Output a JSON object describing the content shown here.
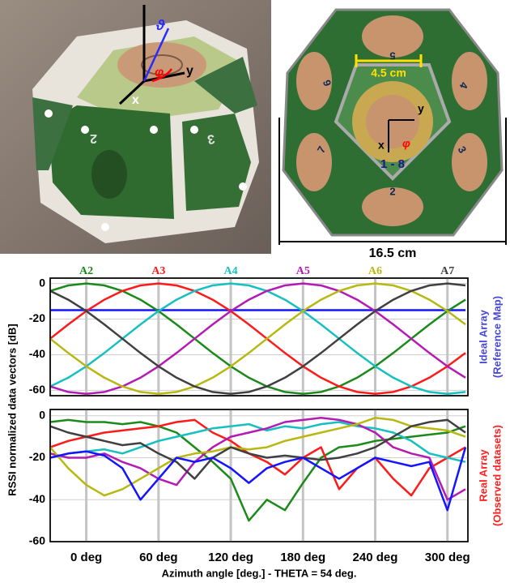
{
  "figure": {
    "photo": {
      "theta": "ϑ",
      "phi": "φ",
      "x": "x",
      "y": "y",
      "face_a": "2",
      "face_b": "3"
    },
    "model": {
      "width_label": "4.5 cm",
      "x": "x",
      "y": "y",
      "phi": "φ",
      "center_label": "1 - 8",
      "faces": [
        "5",
        "4",
        "3",
        "2",
        "7",
        "6"
      ],
      "size_label": "16.5 cm"
    }
  },
  "chart_data": [
    {
      "type": "line",
      "ylabel": "RSSI normalized data vectors [dB]",
      "side_label": [
        "Ideal Array",
        "(Reference Map)"
      ],
      "side_label_color": "#4848d8",
      "x": [
        -30,
        -15,
        0,
        15,
        30,
        45,
        60,
        75,
        90,
        105,
        120,
        135,
        150,
        165,
        180,
        195,
        210,
        225,
        240,
        255,
        270,
        285,
        300,
        315
      ],
      "xlim": [
        -30,
        317
      ],
      "xticks": [
        0,
        60,
        120,
        180,
        240,
        300
      ],
      "xtick_labels": false,
      "ylim": [
        -63,
        3
      ],
      "yticks": [
        0,
        -20,
        -40,
        -60
      ],
      "grid": true,
      "series": [
        {
          "color": "#1414ff",
          "values": [
            -15,
            -15,
            -15,
            -15,
            -15,
            -15,
            -15,
            -15,
            -15,
            -15,
            -15,
            -15,
            -15,
            -15,
            -15,
            -15,
            -15,
            -15,
            -15,
            -15,
            -15,
            -15,
            -15,
            -15
          ]
        },
        {
          "name": "A2",
          "color": "#1b8a1b",
          "values": [
            -4.2,
            -1.1,
            0,
            -1.1,
            -4.2,
            -9.1,
            -15.5,
            -23,
            -31,
            -39,
            -46.5,
            -52.9,
            -57.8,
            -60.9,
            -62,
            -60.9,
            -57.8,
            -52.9,
            -46.5,
            -39,
            -31,
            -23,
            -15.5,
            -9.1
          ]
        },
        {
          "name": "A3",
          "color": "#ff1a1a",
          "values": [
            -31,
            -23,
            -15.5,
            -9.1,
            -4.2,
            -1.1,
            0,
            -1.1,
            -4.2,
            -9.1,
            -15.5,
            -23,
            -31,
            -39,
            -46.5,
            -52.9,
            -57.8,
            -60.9,
            -62,
            -60.9,
            -57.8,
            -52.9,
            -46.5,
            -39
          ]
        },
        {
          "name": "A4",
          "color": "#17c0c0",
          "values": [
            -57.8,
            -52.9,
            -46.5,
            -39,
            -31,
            -23,
            -15.5,
            -9.1,
            -4.2,
            -1.1,
            0,
            -1.1,
            -4.2,
            -9.1,
            -15.5,
            -23,
            -31,
            -39,
            -46.5,
            -52.9,
            -57.8,
            -60.9,
            -62,
            -60.9
          ]
        },
        {
          "name": "A5",
          "color": "#b41ab4",
          "values": [
            -57.8,
            -60.9,
            -62,
            -60.9,
            -57.8,
            -52.9,
            -46.5,
            -39,
            -31,
            -23,
            -15.5,
            -9.1,
            -4.2,
            -1.1,
            0,
            -1.1,
            -4.2,
            -9.1,
            -15.5,
            -23,
            -31,
            -39,
            -46.5,
            -52.9
          ]
        },
        {
          "name": "A6",
          "color": "#b8b812",
          "values": [
            -31,
            -39,
            -46.5,
            -52.9,
            -57.8,
            -60.9,
            -62,
            -60.9,
            -57.8,
            -52.9,
            -46.5,
            -39,
            -31,
            -23,
            -15.5,
            -9.1,
            -4.2,
            -1.1,
            0,
            -1.1,
            -4.2,
            -9.1,
            -15.5,
            -23
          ]
        },
        {
          "name": "A7",
          "color": "#404040",
          "values": [
            -4.2,
            -9.1,
            -15.5,
            -23,
            -31,
            -39,
            -46.5,
            -52.9,
            -57.8,
            -60.9,
            -62,
            -60.9,
            -57.8,
            -52.9,
            -46.5,
            -39,
            -31,
            -23,
            -15.5,
            -9.1,
            -4.2,
            -1.1,
            0,
            -1.1
          ]
        }
      ]
    },
    {
      "type": "line",
      "xlabel": "Azimuth angle [deg.] - THETA = 54 deg.",
      "side_label": [
        "Real Array",
        "(Observed datasets)"
      ],
      "side_label_color": "#ff2020",
      "x": [
        -30,
        -15,
        0,
        15,
        30,
        45,
        60,
        75,
        90,
        105,
        120,
        135,
        150,
        165,
        180,
        195,
        210,
        225,
        240,
        255,
        270,
        285,
        300,
        315
      ],
      "xlim": [
        -30,
        317
      ],
      "xticks": [
        {
          "value": 0,
          "label": "0 deg"
        },
        {
          "value": 60,
          "label": "60 deg"
        },
        {
          "value": 120,
          "label": "120 deg"
        },
        {
          "value": 180,
          "label": "180 deg"
        },
        {
          "value": 240,
          "label": "240 deg"
        },
        {
          "value": 300,
          "label": "300 deg"
        }
      ],
      "ylim": [
        -60,
        3
      ],
      "yticks": [
        0,
        -20,
        -40,
        -60
      ],
      "grid": true,
      "series": [
        {
          "color": "#1b8a1b",
          "values": [
            -3,
            -2,
            -3,
            -3,
            -4,
            -3,
            -5,
            -8,
            -15,
            -22,
            -30,
            -50,
            -40,
            -45,
            -32,
            -20,
            -15,
            -14,
            -12,
            -11,
            -10,
            -9,
            -8,
            -5
          ]
        },
        {
          "color": "#ff1a1a",
          "values": [
            -15,
            -12,
            -10,
            -8,
            -7,
            -6,
            -5,
            -3,
            -2,
            -8,
            -12,
            -18,
            -22,
            -28,
            -20,
            -15,
            -35,
            -25,
            -20,
            -30,
            -38,
            -25,
            -20,
            -15
          ]
        },
        {
          "color": "#17c0c0",
          "values": [
            -20,
            -18,
            -17,
            -16,
            -18,
            -15,
            -12,
            -10,
            -8,
            -6,
            -5,
            -4,
            -7,
            -5,
            -6,
            -4,
            -3,
            -5,
            -6,
            -8,
            -12,
            -18,
            -20,
            -22
          ]
        },
        {
          "color": "#b41ab4",
          "values": [
            -18,
            -20,
            -20,
            -18,
            -22,
            -25,
            -30,
            -33,
            -22,
            -15,
            -10,
            -8,
            -6,
            -3,
            -2,
            -1,
            -2,
            -4,
            -8,
            -15,
            -18,
            -20,
            -40,
            -35
          ]
        },
        {
          "color": "#b8b812",
          "values": [
            -15,
            -25,
            -33,
            -38,
            -35,
            -30,
            -25,
            -20,
            -18,
            -17,
            -15,
            -16,
            -15,
            -12,
            -10,
            -8,
            -6,
            -4,
            -1,
            -2,
            -5,
            -6,
            -7,
            -10
          ]
        },
        {
          "color": "#404040",
          "values": [
            -5,
            -8,
            -10,
            -12,
            -14,
            -13,
            -18,
            -22,
            -30,
            -20,
            -15,
            -18,
            -20,
            -19,
            -20,
            -21,
            -20,
            -18,
            -15,
            -10,
            -5,
            -3,
            -2,
            -8
          ]
        },
        {
          "color": "#1414ff",
          "values": [
            -20,
            -18,
            -17,
            -19,
            -25,
            -40,
            -30,
            -20,
            -22,
            -20,
            -25,
            -32,
            -25,
            -22,
            -20,
            -25,
            -30,
            -25,
            -20,
            -22,
            -24,
            -22,
            -45,
            -15
          ]
        }
      ]
    }
  ]
}
